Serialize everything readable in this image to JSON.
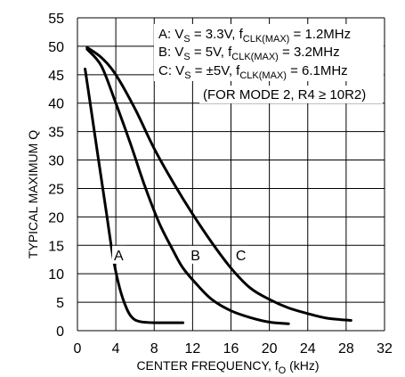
{
  "chart_data": {
    "type": "line",
    "title": "",
    "xlabel": "CENTER FREQUENCY, f",
    "xlabel_sub": "O",
    "xlabel_unit": " (kHz)",
    "ylabel": "TYPICAL MAXIMUM Q",
    "xlim": [
      0,
      32
    ],
    "ylim": [
      0,
      55
    ],
    "x_ticks": [
      0,
      4,
      8,
      12,
      16,
      20,
      24,
      28,
      32
    ],
    "y_ticks": [
      0,
      5,
      10,
      15,
      20,
      25,
      30,
      35,
      40,
      45,
      50,
      55
    ],
    "grid": true,
    "legend_position": "top-right",
    "legend": [
      {
        "name": "A",
        "label_pre": "A: V",
        "sub1": "S",
        "mid": " = 3.3V, f",
        "sub2": "CLK(MAX)",
        "post": " = 1.2MHz"
      },
      {
        "name": "B",
        "label_pre": "B: V",
        "sub1": "S",
        "mid": " = 5V, f",
        "sub2": "CLK(MAX)",
        "post": " = 3.2MHz"
      },
      {
        "name": "C",
        "label_pre": "C: V",
        "sub1": "S",
        "mid": " = ±5V, f",
        "sub2": "CLK(MAX)",
        "post": " = 6.1MHz"
      }
    ],
    "note": "(FOR MODE 2, R4 ≥ 10R2)",
    "series": [
      {
        "name": "A",
        "label_at": [
          3.8,
          12.4
        ],
        "points": [
          [
            0.8,
            46
          ],
          [
            1.5,
            38
          ],
          [
            2.2,
            30
          ],
          [
            3,
            21
          ],
          [
            3.7,
            13
          ],
          [
            4.4,
            7.5
          ],
          [
            5.1,
            4
          ],
          [
            5.7,
            2.3
          ],
          [
            6.5,
            1.6
          ],
          [
            8,
            1.4
          ],
          [
            11,
            1.4
          ]
        ]
      },
      {
        "name": "B",
        "label_at": [
          11.8,
          12.4
        ],
        "points": [
          [
            1,
            49.5
          ],
          [
            2.5,
            46.5
          ],
          [
            4,
            40
          ],
          [
            5.5,
            33
          ],
          [
            7,
            25.5
          ],
          [
            8.5,
            19
          ],
          [
            10,
            14
          ],
          [
            11,
            11
          ],
          [
            12.5,
            8
          ],
          [
            14,
            5.5
          ],
          [
            16,
            3.5
          ],
          [
            18,
            2.3
          ],
          [
            20,
            1.5
          ],
          [
            22,
            1.2
          ]
        ]
      },
      {
        "name": "C",
        "label_at": [
          16.5,
          12.4
        ],
        "points": [
          [
            1,
            49.8
          ],
          [
            2.5,
            48
          ],
          [
            4,
            45
          ],
          [
            6,
            39
          ],
          [
            8,
            32
          ],
          [
            10,
            26
          ],
          [
            12,
            20.5
          ],
          [
            14,
            15.5
          ],
          [
            16,
            11
          ],
          [
            18,
            7.5
          ],
          [
            20,
            5.5
          ],
          [
            22,
            4
          ],
          [
            24,
            3
          ],
          [
            26,
            2.2
          ],
          [
            28.5,
            1.8
          ]
        ]
      }
    ]
  }
}
